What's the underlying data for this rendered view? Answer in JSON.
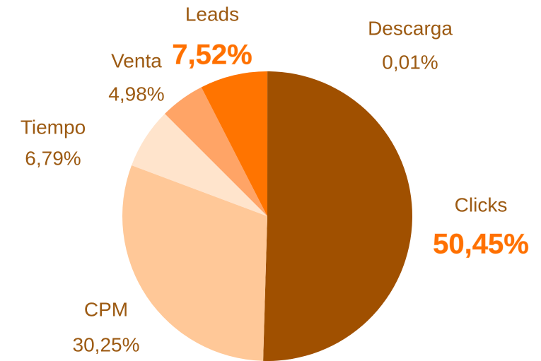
{
  "chart_data": {
    "type": "pie",
    "categories": [
      "Descarga",
      "Clicks",
      "CPM",
      "Tiempo",
      "Venta",
      "Leads"
    ],
    "values": [
      0.01,
      50.45,
      30.25,
      6.79,
      4.98,
      7.52
    ],
    "value_labels": [
      "0,01%",
      "50,45%",
      "30,25%",
      "6,79%",
      "4,98%",
      "7,52%"
    ],
    "colors": [
      "#7a3c00",
      "#a05000",
      "#ffc898",
      "#ffe4cc",
      "#ffa466",
      "#ff7400"
    ],
    "emphasized": [
      false,
      true,
      false,
      false,
      false,
      true
    ],
    "start_angle": 90,
    "direction": "clockwise"
  }
}
